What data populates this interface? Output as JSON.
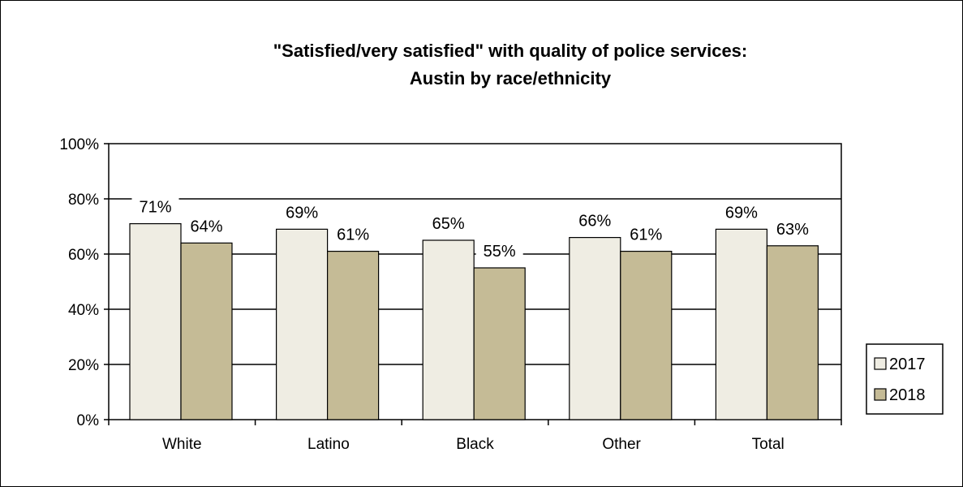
{
  "chart_data": {
    "type": "bar",
    "title_lines": [
      "\"Satisfied/very satisfied\" with quality of police services:",
      "Austin by race/ethnicity"
    ],
    "categories": [
      "White",
      "Latino",
      "Black",
      "Other",
      "Total"
    ],
    "series": [
      {
        "name": "2017",
        "values": [
          71,
          69,
          65,
          66,
          69
        ],
        "labels": [
          "71%",
          "69%",
          "65%",
          "66%",
          "69%"
        ],
        "color": "#efede3"
      },
      {
        "name": "2018",
        "values": [
          64,
          61,
          55,
          61,
          63
        ],
        "labels": [
          "64%",
          "61%",
          "55%",
          "61%",
          "63%"
        ],
        "color": "#c5bb96"
      }
    ],
    "ylim": [
      0,
      100
    ],
    "yticks": [
      0,
      20,
      40,
      60,
      80,
      100
    ],
    "ytick_labels": [
      "0%",
      "20%",
      "40%",
      "60%",
      "80%",
      "100%"
    ],
    "grid": true,
    "legend_position": "right"
  }
}
